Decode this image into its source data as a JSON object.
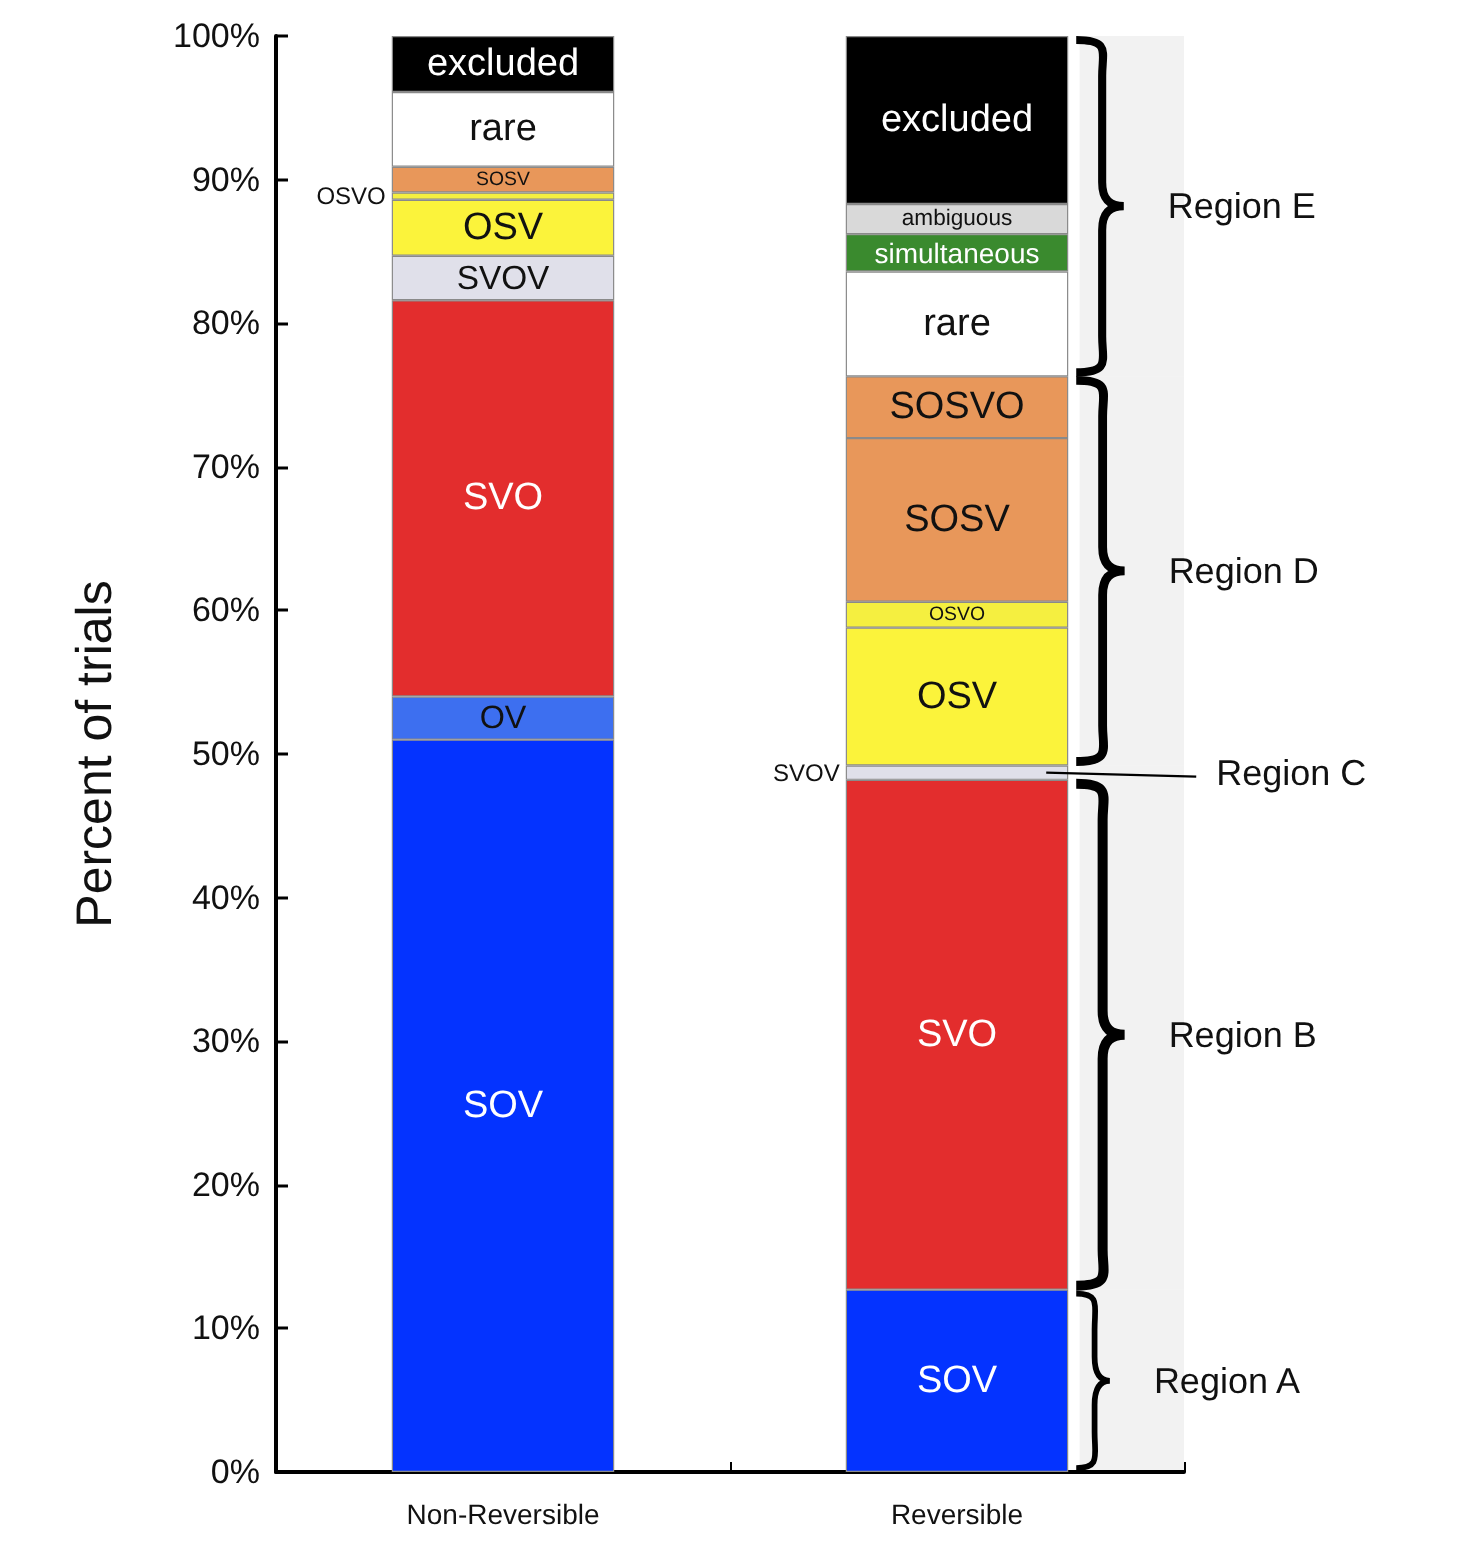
{
  "chart_data": {
    "type": "bar",
    "stacked": true,
    "ylabel": "Percent of trials",
    "categories": [
      "Non-Reversible",
      "Reversible"
    ],
    "ylim": [
      0,
      100
    ],
    "yticks": [
      {
        "value": 0,
        "label": "0%"
      },
      {
        "value": 10,
        "label": "10%"
      },
      {
        "value": 20,
        "label": "20%"
      },
      {
        "value": 30,
        "label": "30%"
      },
      {
        "value": 40,
        "label": "40%"
      },
      {
        "value": 50,
        "label": "50%"
      },
      {
        "value": 60,
        "label": "60%"
      },
      {
        "value": 70,
        "label": "70%"
      },
      {
        "value": 80,
        "label": "80%"
      },
      {
        "value": 90,
        "label": "90%"
      },
      {
        "value": 100,
        "label": "100%"
      }
    ],
    "grid": false,
    "legend": false,
    "series": [
      {
        "name": "SOV",
        "color": "#0433ff",
        "values": [
          51.0,
          12.7
        ]
      },
      {
        "name": "OV",
        "color": "#3d6ff0",
        "values": [
          3.0,
          null
        ]
      },
      {
        "name": "SVO",
        "color": "#e32d2d",
        "values": [
          27.6,
          35.5
        ]
      },
      {
        "name": "SVOV",
        "color": "#e0e0ea",
        "values": [
          3.1,
          1.0
        ]
      },
      {
        "name": "OSV",
        "color": "#fbf33b",
        "values": [
          3.9,
          9.6
        ]
      },
      {
        "name": "OSVO",
        "color": "#f5ef40",
        "values": [
          0.5,
          1.8
        ]
      },
      {
        "name": "SOSV",
        "color": "#e8975a",
        "values": [
          1.8,
          11.4
        ]
      },
      {
        "name": "SOSVO",
        "color": "#e8975a",
        "values": [
          null,
          4.3
        ]
      },
      {
        "name": "rare",
        "color": "#ffffff",
        "values": [
          5.2,
          7.3
        ]
      },
      {
        "name": "simultaneous",
        "color": "#3a8a2e",
        "values": [
          null,
          2.6
        ]
      },
      {
        "name": "ambiguous",
        "color": "#d9d9d9",
        "values": [
          null,
          2.1
        ]
      },
      {
        "name": "excluded",
        "color": "#000000",
        "values": [
          3.9,
          11.7
        ]
      }
    ],
    "bands": [
      {
        "axis": "y",
        "from": 0,
        "to": 12.7,
        "label": "Region A"
      },
      {
        "axis": "y",
        "from": 12.7,
        "to": 48.2,
        "label": "Region B"
      },
      {
        "axis": "y",
        "from": 48.2,
        "to": 49.2,
        "label": "Region C"
      },
      {
        "axis": "y",
        "from": 49.2,
        "to": 76.3,
        "label": "Region D"
      },
      {
        "axis": "y",
        "from": 76.3,
        "to": 100,
        "label": "Region E"
      }
    ]
  }
}
